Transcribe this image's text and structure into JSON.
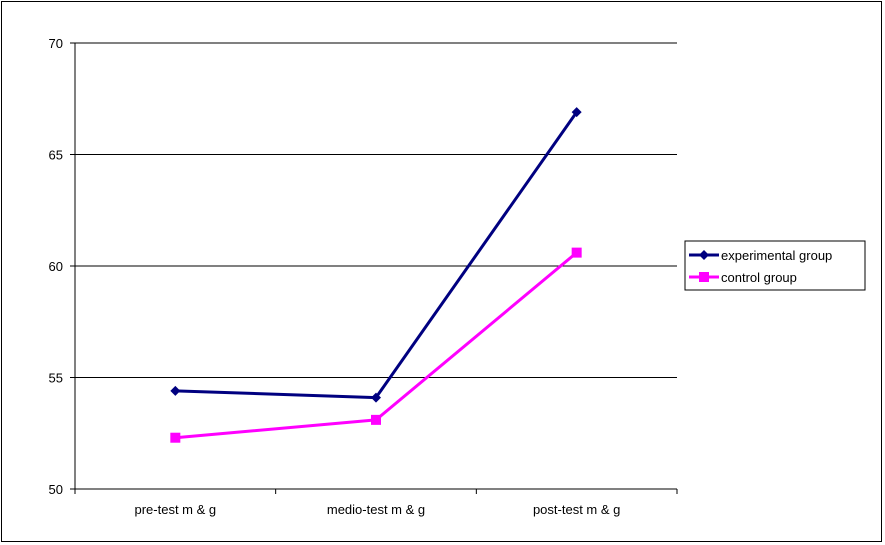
{
  "chart_data": {
    "type": "line",
    "categories": [
      "pre-test m & g",
      "medio-test m & g",
      "post-test m & g"
    ],
    "series": [
      {
        "name": "experimental group",
        "values": [
          54.4,
          54.1,
          66.9
        ],
        "color": "#000080",
        "marker": "diamond"
      },
      {
        "name": "control group",
        "values": [
          52.3,
          53.1,
          60.6
        ],
        "color": "#ff00ff",
        "marker": "square"
      }
    ],
    "ylim": [
      50,
      70
    ],
    "yticks": [
      "50",
      "55",
      "60",
      "65",
      "70"
    ],
    "grid": true,
    "legend": "right"
  }
}
